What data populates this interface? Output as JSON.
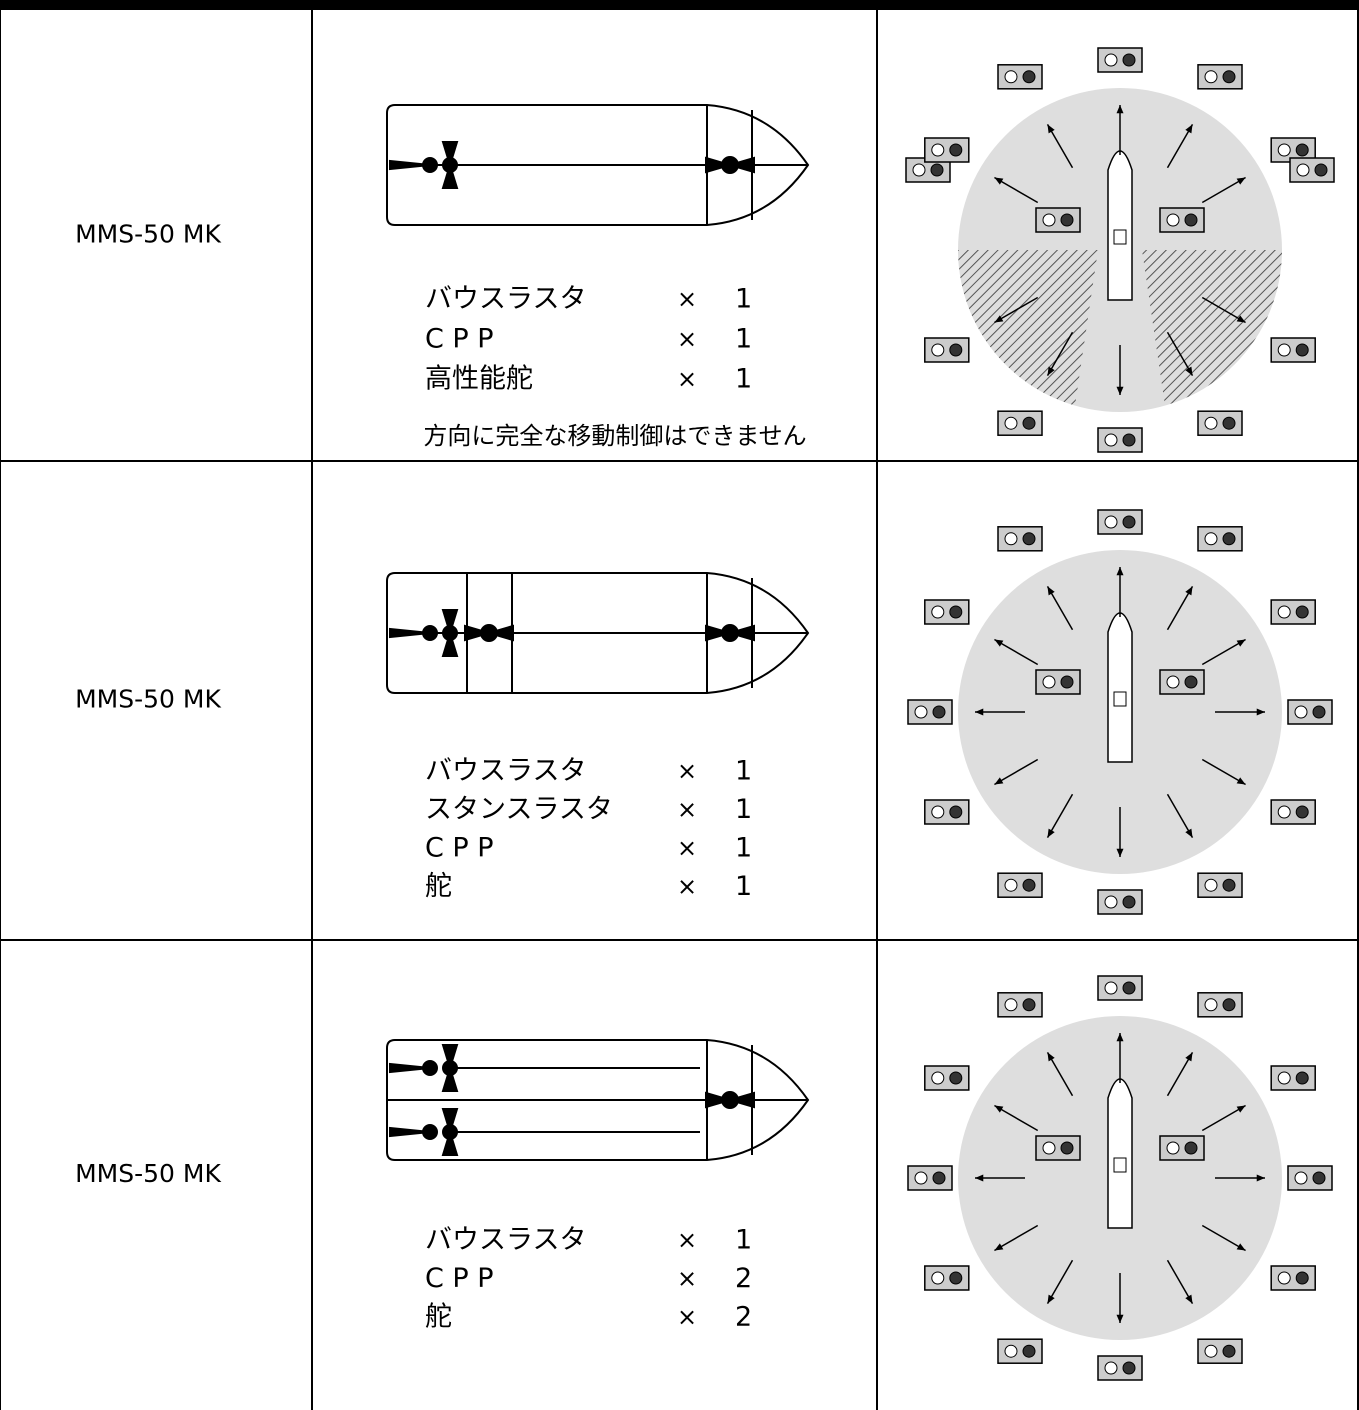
{
  "table": {
    "rows": [
      {
        "model": "MMS-50 MK",
        "equipment": [
          {
            "name": "バウスラスタ",
            "times": "×",
            "count": 1
          },
          {
            "name": "C P P",
            "times": "×",
            "count": 1
          },
          {
            "name": "高性能舵",
            "times": "×",
            "count": 1
          }
        ],
        "note": "方向に完全な移動制御はできません"
      },
      {
        "model": "MMS-50 MK",
        "equipment": [
          {
            "name": "バウスラスタ",
            "times": "×",
            "count": 1
          },
          {
            "name": "スタンスラスタ",
            "times": "×",
            "count": 1
          },
          {
            "name": "C P P",
            "times": "×",
            "count": 1
          },
          {
            "name": "舵",
            "times": "×",
            "count": 1
          }
        ]
      },
      {
        "model": "MMS-50 MK",
        "equipment": [
          {
            "name": "バウスラスタ",
            "times": "×",
            "count": 1
          },
          {
            "name": "C P P",
            "times": "×",
            "count": 2
          },
          {
            "name": "舵",
            "times": "×",
            "count": 2
          }
        ]
      }
    ]
  }
}
